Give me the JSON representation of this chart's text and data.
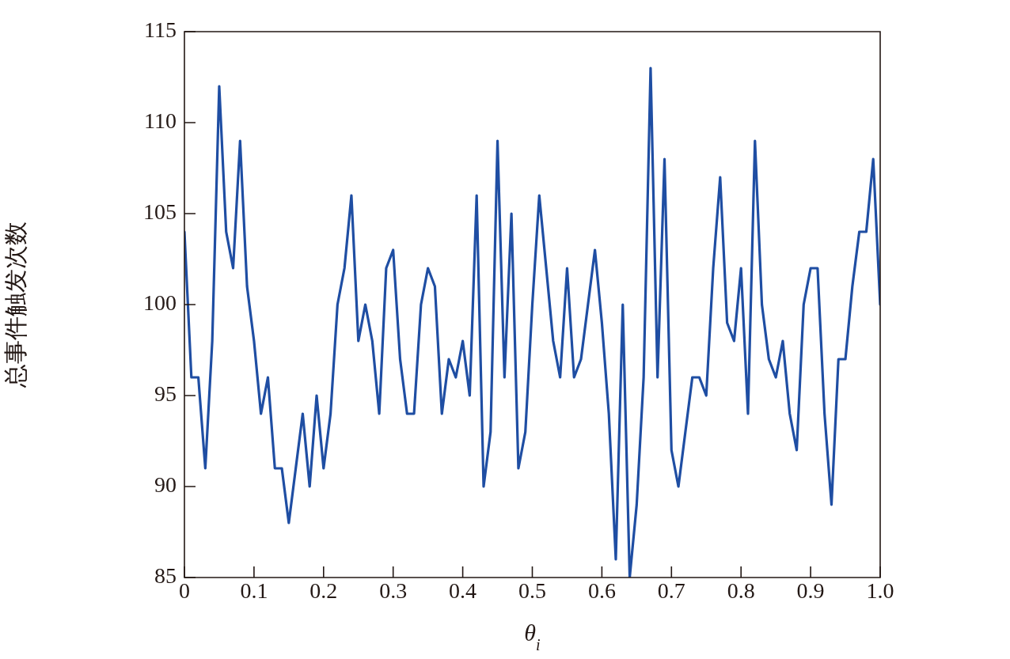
{
  "chart_data": {
    "type": "line",
    "xlabel": "θ$_{i}$",
    "ylabel": "总事件触发次数",
    "x": [
      0,
      0.01,
      0.02,
      0.03,
      0.04,
      0.05,
      0.06,
      0.07,
      0.08,
      0.09,
      0.1,
      0.11,
      0.12,
      0.13,
      0.14,
      0.15,
      0.16,
      0.17,
      0.18,
      0.19,
      0.2,
      0.21,
      0.22,
      0.23,
      0.24,
      0.25,
      0.26,
      0.27,
      0.28,
      0.29,
      0.3,
      0.31,
      0.32,
      0.33,
      0.34,
      0.35,
      0.36,
      0.37,
      0.38,
      0.39,
      0.4,
      0.41,
      0.42,
      0.43,
      0.44,
      0.45,
      0.46,
      0.47,
      0.48,
      0.49,
      0.5,
      0.51,
      0.52,
      0.53,
      0.54,
      0.55,
      0.56,
      0.57,
      0.58,
      0.59,
      0.6,
      0.61,
      0.62,
      0.63,
      0.64,
      0.65,
      0.66,
      0.67,
      0.68,
      0.69,
      0.7,
      0.71,
      0.72,
      0.73,
      0.74,
      0.75,
      0.76,
      0.77,
      0.78,
      0.79,
      0.8,
      0.81,
      0.82,
      0.83,
      0.84,
      0.85,
      0.86,
      0.87,
      0.88,
      0.89,
      0.9,
      0.91,
      0.92,
      0.93,
      0.94,
      0.95,
      0.96,
      0.97,
      0.98,
      0.99,
      1.0
    ],
    "series": [
      {
        "color": "#1f4ea3",
        "values": [
          104,
          96,
          96,
          91,
          98,
          112,
          104,
          102,
          109,
          101,
          98,
          94,
          96,
          91,
          91,
          88,
          91,
          94,
          90,
          95,
          91,
          94,
          100,
          102,
          106,
          98,
          100,
          98,
          94,
          102,
          103,
          97,
          94,
          94,
          100,
          102,
          101,
          94,
          97,
          96,
          98,
          95,
          106,
          90,
          93,
          109,
          96,
          105,
          91,
          93,
          100,
          106,
          102,
          98,
          96,
          102,
          96,
          97,
          100,
          103,
          99,
          94,
          86,
          100,
          85,
          89,
          96,
          113,
          96,
          108,
          92,
          90,
          93,
          96,
          96,
          95,
          102,
          107,
          99,
          98,
          102,
          94,
          109,
          100,
          97,
          96,
          98,
          94,
          92,
          100,
          102,
          102,
          94,
          89,
          97,
          97,
          101,
          104,
          104,
          108,
          100
        ]
      }
    ],
    "xlim": [
      0,
      1
    ],
    "xticks": [
      {
        "value": 0,
        "label": "0"
      },
      0.1,
      0.2,
      0.3,
      0.4,
      0.5,
      0.6,
      0.7,
      0.8,
      0.9,
      {
        "value": 1,
        "label": "1.0"
      }
    ],
    "ylim": [
      85,
      115
    ],
    "yticks": [
      85,
      90,
      95,
      100,
      105,
      110,
      115
    ],
    "grid": false,
    "legend": false,
    "marker": "none",
    "line_style": "solid"
  }
}
